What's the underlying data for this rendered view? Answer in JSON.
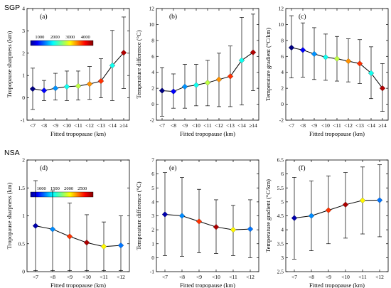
{
  "figure": {
    "rows": [
      {
        "site": "SGP",
        "colorbar": {
          "ticks": [
            "1000",
            "2000",
            "3000",
            "4000"
          ],
          "min": 400,
          "max": 4500
        }
      },
      {
        "site": "NSA",
        "colorbar": {
          "ticks": [
            "1000",
            "1500",
            "2000",
            "2500"
          ],
          "min": 600,
          "max": 2900
        }
      }
    ]
  },
  "chart_data": [
    {
      "type": "line",
      "panel": "(a)",
      "row": 0,
      "col": 0,
      "xlabel": "Fitted tropopause (km)",
      "ylabel": "Tropopause sharpness (km)",
      "categories": [
        "<7",
        "<8",
        "<9",
        "<10",
        "<11",
        "<12",
        "<13",
        "<14",
        "≥14"
      ],
      "ylim": [
        -1,
        4
      ],
      "yticks": [
        -1,
        0,
        1,
        2,
        3,
        4
      ],
      "values": [
        0.4,
        0.33,
        0.43,
        0.5,
        0.53,
        0.62,
        0.75,
        1.45,
        2.02
      ],
      "err_low": [
        -0.52,
        -0.12,
        -0.1,
        -0.12,
        -0.1,
        -0.07,
        0.0,
        -0.12,
        0.42
      ],
      "err_high": [
        1.33,
        0.78,
        1.1,
        1.2,
        1.2,
        1.4,
        1.75,
        3.02,
        3.62
      ],
      "color_values": [
        400,
        900,
        1500,
        2000,
        2700,
        3400,
        3800,
        2000,
        4300
      ]
    },
    {
      "type": "line",
      "panel": "(b)",
      "row": 0,
      "col": 1,
      "xlabel": "Fitted tropopause (km)",
      "ylabel": "Temperature difference (°C)",
      "categories": [
        "<7",
        "<8",
        "<9",
        "<10",
        "<11",
        "<12",
        "<13",
        "<14",
        "≥14"
      ],
      "ylim": [
        -2,
        12
      ],
      "yticks": [
        -2,
        0,
        2,
        4,
        6,
        8,
        10,
        12
      ],
      "values": [
        1.7,
        1.6,
        2.2,
        2.4,
        2.7,
        3.1,
        3.5,
        5.5,
        6.5
      ],
      "err_low": [
        -1.5,
        -0.5,
        -0.5,
        -0.2,
        -0.2,
        -0.3,
        -0.3,
        -0.1,
        1.7
      ],
      "err_high": [
        4.6,
        3.8,
        5.0,
        5.0,
        5.5,
        6.4,
        7.3,
        10.9,
        11.3
      ],
      "color_values": [
        400,
        900,
        1500,
        2000,
        2700,
        3400,
        3800,
        2000,
        4300
      ]
    },
    {
      "type": "line",
      "panel": "(c)",
      "row": 0,
      "col": 2,
      "xlabel": "Fitted tropopause (km)",
      "ylabel": "Temperature gradient (°C/km)",
      "categories": [
        "<7",
        "<8",
        "<9",
        "<10",
        "<11",
        "<12",
        "<13",
        "<14",
        "≥14"
      ],
      "ylim": [
        -2,
        12
      ],
      "yticks": [
        -2,
        0,
        2,
        4,
        6,
        8,
        10,
        12
      ],
      "values": [
        7.1,
        6.8,
        6.3,
        5.9,
        5.7,
        5.4,
        5.1,
        3.9,
        2.0
      ],
      "err_low": [
        3.3,
        3.4,
        3.1,
        3.0,
        2.9,
        2.8,
        2.6,
        0.7,
        -0.9
      ],
      "err_high": [
        11.1,
        10.2,
        9.6,
        8.8,
        8.5,
        8.2,
        8.1,
        7.2,
        5.1
      ],
      "color_values": [
        400,
        900,
        1500,
        2000,
        2700,
        3400,
        3800,
        2000,
        4300
      ]
    },
    {
      "type": "line",
      "panel": "(d)",
      "row": 1,
      "col": 0,
      "xlabel": "Fitted tropopause (km)",
      "ylabel": "Tropopause sharpness (km)",
      "categories": [
        "<7",
        "<8",
        "<9",
        "<10",
        "<11",
        "<12"
      ],
      "ylim": [
        0,
        2
      ],
      "yticks": [
        0,
        0.5,
        1,
        1.5,
        2
      ],
      "values": [
        0.82,
        0.76,
        0.63,
        0.52,
        0.45,
        0.47
      ],
      "err_low": [
        0.02,
        0.02,
        0.02,
        0.02,
        0.02,
        0.02
      ],
      "err_high": [
        1.63,
        1.45,
        1.23,
        1.02,
        0.89,
        1.0
      ],
      "color_values": [
        700,
        1200,
        2500,
        2800,
        2050,
        1150
      ]
    },
    {
      "type": "line",
      "panel": "(e)",
      "row": 1,
      "col": 1,
      "xlabel": "Fitted tropopause (km)",
      "ylabel": "Temperature difference (°C)",
      "categories": [
        "<7",
        "<8",
        "<9",
        "<10",
        "<11",
        "<12"
      ],
      "ylim": [
        -1,
        7
      ],
      "yticks": [
        -1,
        0,
        1,
        2,
        3,
        4,
        5,
        6,
        7
      ],
      "values": [
        3.1,
        3.0,
        2.6,
        2.2,
        2.0,
        2.05
      ],
      "err_low": [
        0.15,
        0.1,
        0.35,
        0.3,
        0.15,
        0.0
      ],
      "err_high": [
        6.1,
        5.75,
        4.9,
        4.15,
        3.75,
        4.15
      ],
      "color_values": [
        700,
        1200,
        2500,
        2800,
        2050,
        1150
      ]
    },
    {
      "type": "line",
      "panel": "(f)",
      "row": 1,
      "col": 2,
      "xlabel": "Fitted tropopause (km)",
      "ylabel": "Temperature gradient (°C/km)",
      "categories": [
        "<7",
        "<8",
        "<9",
        "<10",
        "<11",
        "<12"
      ],
      "ylim": [
        2.5,
        6.5
      ],
      "yticks": [
        2.5,
        3,
        3.5,
        4,
        4.5,
        5,
        5.5,
        6,
        6.5
      ],
      "values": [
        4.42,
        4.5,
        4.7,
        4.9,
        5.05,
        5.06
      ],
      "err_low": [
        2.95,
        3.25,
        3.5,
        3.7,
        3.85,
        3.75
      ],
      "err_high": [
        5.88,
        5.75,
        5.93,
        6.05,
        6.25,
        6.33
      ],
      "color_values": [
        700,
        1200,
        2500,
        2800,
        2050,
        1150
      ]
    }
  ]
}
